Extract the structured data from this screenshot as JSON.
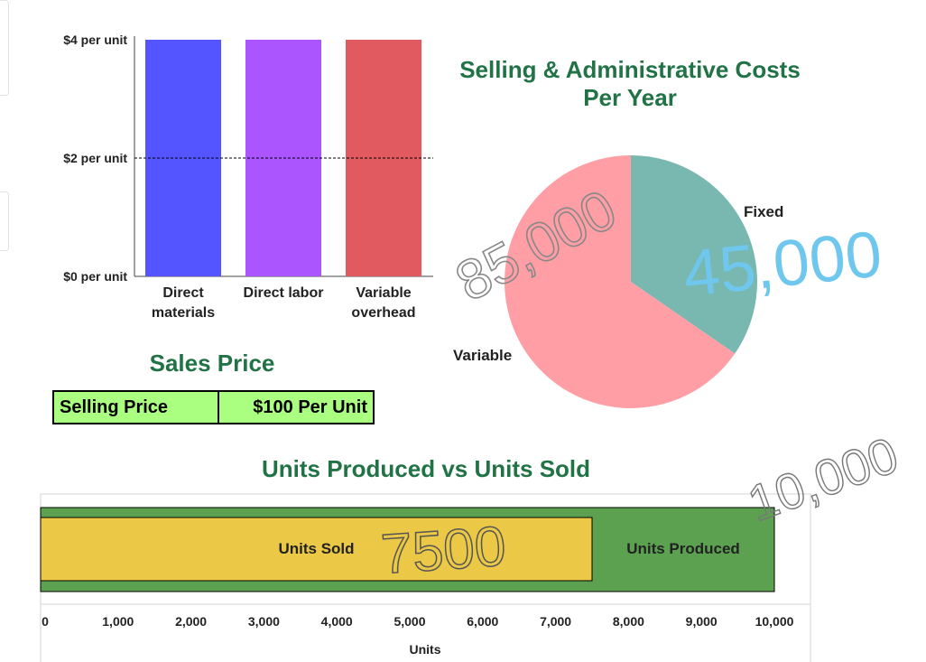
{
  "chart_data": [
    {
      "type": "bar",
      "categories": [
        [
          "Direct",
          "materials"
        ],
        [
          "Direct labor"
        ],
        [
          "Variable",
          "overhead"
        ]
      ],
      "values": [
        4,
        4,
        4
      ],
      "colors": [
        "#5555ff",
        "#aa55ff",
        "#e05a60"
      ],
      "yticks": [
        {
          "value": 0,
          "label": "$0 per unit"
        },
        {
          "value": 2,
          "label": "$2 per unit"
        },
        {
          "value": 4,
          "label": "$4 per unit"
        }
      ],
      "ylim": [
        0,
        4
      ],
      "reference_line": 2
    },
    {
      "type": "pie",
      "title": "Selling & Administrative Costs Per Year",
      "title_lines": [
        "Selling & Administrative Costs",
        "Per Year"
      ],
      "slices": [
        {
          "label": "Fixed",
          "value": 45000,
          "color": "#78b8b0"
        },
        {
          "label": "Variable",
          "value": 85000,
          "color": "#ff9ea5"
        }
      ]
    },
    {
      "type": "bar",
      "orientation": "horizontal",
      "title": "Units Produced vs Units Sold",
      "xlabel": "Units",
      "xlim": [
        0,
        10000
      ],
      "xticks": [
        "0",
        "1,000",
        "2,000",
        "3,000",
        "4,000",
        "5,000",
        "6,000",
        "7,000",
        "8,000",
        "9,000",
        "10,000"
      ],
      "series": [
        {
          "name": "Units Produced",
          "value": 10000,
          "color": "#5ba150"
        },
        {
          "name": "Units Sold",
          "value": 7500,
          "color": "#ebc845"
        }
      ]
    }
  ],
  "sales": {
    "title": "Sales Price",
    "label": "Selling Price",
    "value": "$100 Per Unit"
  },
  "handwriting": [
    {
      "text": "85,000",
      "color": "#888888"
    },
    {
      "text": "45,000",
      "color": "#6fc7ee"
    },
    {
      "text": "7500",
      "color": "#666666"
    },
    {
      "text": "10,000",
      "color": "#888888"
    }
  ]
}
